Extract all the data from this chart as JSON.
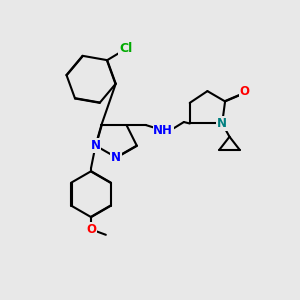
{
  "bg_color": "#e8e8e8",
  "bond_color": "#000000",
  "lw": 1.5,
  "dbo": 0.012,
  "colors": {
    "Cl": "#00aa00",
    "N": "#0000ff",
    "NH": "#0000ff",
    "O": "#ff0000",
    "N_teal": "#008080"
  },
  "fontsize": 8.5
}
